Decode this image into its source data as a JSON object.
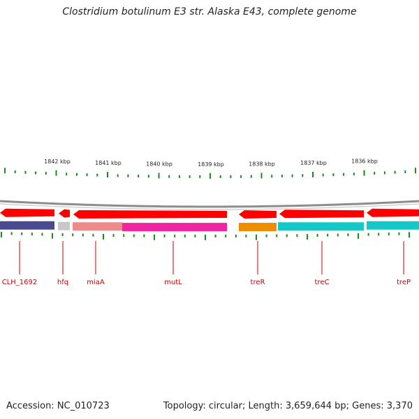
{
  "title": "Clostridium botulinum E3 str. Alaska E43, complete genome",
  "footer": {
    "accession": "Accession: NC_010723",
    "summary": "Topology: circular; Length: 3,659,644 bp; Genes: 3,370"
  },
  "colors": {
    "backbone": "#8c8c8c",
    "cds": "#ff0000",
    "tick": "#1a8a1a",
    "label": "#cc0000",
    "purple": "#4a4a90",
    "gray": "#c8c8c8",
    "salmon": "#f08a8a",
    "magenta": "#f026a0",
    "orange": "#f08c00",
    "cyan": "#14c8c8"
  },
  "kbp_labels": [
    "1842 kbp",
    "1841 kbp",
    "1840 kbp",
    "1839 kbp",
    "1838 kbp",
    "1837 kbp",
    "1836 kbp"
  ],
  "genes": [
    {
      "name": "CLH_1692",
      "color": "purple",
      "strand": "reverse"
    },
    {
      "name": "hfq",
      "color": "gray",
      "strand": "reverse"
    },
    {
      "name": "miaA",
      "color": "salmon",
      "strand": "reverse"
    },
    {
      "name": "mutL",
      "color": "magenta",
      "strand": "reverse"
    },
    {
      "name": "treR",
      "color": "orange",
      "strand": "reverse"
    },
    {
      "name": "treC",
      "color": "cyan",
      "strand": "reverse"
    },
    {
      "name": "treP",
      "color": "cyan",
      "strand": "reverse"
    }
  ]
}
